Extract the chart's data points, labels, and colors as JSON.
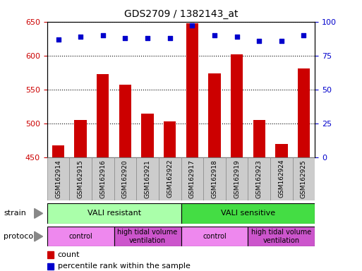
{
  "title": "GDS2709 / 1382143_at",
  "samples": [
    "GSM162914",
    "GSM162915",
    "GSM162916",
    "GSM162920",
    "GSM162921",
    "GSM162922",
    "GSM162917",
    "GSM162918",
    "GSM162919",
    "GSM162923",
    "GSM162924",
    "GSM162925"
  ],
  "bar_values": [
    467,
    505,
    573,
    557,
    514,
    503,
    648,
    574,
    602,
    505,
    469,
    581
  ],
  "dot_values": [
    87,
    89,
    90,
    88,
    88,
    88,
    97,
    90,
    89,
    86,
    86,
    90
  ],
  "ylim_left": [
    450,
    650
  ],
  "ylim_right": [
    0,
    100
  ],
  "yticks_left": [
    450,
    500,
    550,
    600,
    650
  ],
  "yticks_right": [
    0,
    25,
    50,
    75,
    100
  ],
  "bar_color": "#cc0000",
  "dot_color": "#0000cc",
  "bar_bottom": 450,
  "strain_groups": [
    {
      "label": "VALI resistant",
      "start": 0,
      "end": 6,
      "color": "#aaffaa"
    },
    {
      "label": "VALI sensitive",
      "start": 6,
      "end": 12,
      "color": "#44dd44"
    }
  ],
  "protocol_groups": [
    {
      "label": "control",
      "start": 0,
      "end": 3,
      "color": "#ee88ee"
    },
    {
      "label": "high tidal volume\nventilation",
      "start": 3,
      "end": 6,
      "color": "#cc55cc"
    },
    {
      "label": "control",
      "start": 6,
      "end": 9,
      "color": "#ee88ee"
    },
    {
      "label": "high tidal volume\nventilation",
      "start": 9,
      "end": 12,
      "color": "#cc55cc"
    }
  ],
  "legend_count_color": "#cc0000",
  "legend_dot_color": "#0000cc",
  "tick_label_color_left": "#cc0000",
  "tick_label_color_right": "#0000cc",
  "xticklabel_bg": "#cccccc",
  "grid_color": "black"
}
